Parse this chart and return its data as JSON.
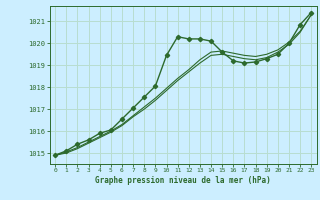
{
  "title": "Graphe pression niveau de la mer (hPa)",
  "background_color": "#cceeff",
  "grid_color": "#b8ddd0",
  "line_color": "#2d6a2d",
  "xlim": [
    -0.5,
    23.5
  ],
  "ylim": [
    1014.5,
    1021.7
  ],
  "yticks": [
    1015,
    1016,
    1017,
    1018,
    1019,
    1020,
    1021
  ],
  "xticks": [
    0,
    1,
    2,
    3,
    4,
    5,
    6,
    7,
    8,
    9,
    10,
    11,
    12,
    13,
    14,
    15,
    16,
    17,
    18,
    19,
    20,
    21,
    22,
    23
  ],
  "series1_x": [
    0,
    1,
    2,
    3,
    4,
    5,
    6,
    7,
    8,
    9,
    10,
    11,
    12,
    13,
    14,
    15,
    16,
    17,
    18,
    19,
    20,
    21,
    22,
    23
  ],
  "series1_y": [
    1014.9,
    1015.1,
    1015.4,
    1015.6,
    1015.9,
    1016.05,
    1016.55,
    1017.05,
    1017.55,
    1018.05,
    1019.45,
    1020.3,
    1020.2,
    1020.2,
    1020.1,
    1019.6,
    1019.2,
    1019.1,
    1019.15,
    1019.3,
    1019.5,
    1020.0,
    1020.85,
    1021.4
  ],
  "series2_x": [
    0,
    1,
    2,
    3,
    4,
    5,
    6,
    7,
    8,
    9,
    10,
    11,
    12,
    13,
    14,
    15,
    16,
    17,
    18,
    19,
    20,
    21,
    22,
    23
  ],
  "series2_y": [
    1014.9,
    1015.05,
    1015.25,
    1015.5,
    1015.75,
    1016.0,
    1016.3,
    1016.7,
    1017.1,
    1017.5,
    1017.95,
    1018.4,
    1018.8,
    1019.25,
    1019.6,
    1019.65,
    1019.55,
    1019.45,
    1019.4,
    1019.5,
    1019.7,
    1020.05,
    1020.55,
    1021.3
  ],
  "series3_x": [
    0,
    1,
    2,
    3,
    4,
    5,
    6,
    7,
    8,
    9,
    10,
    11,
    12,
    13,
    14,
    15,
    16,
    17,
    18,
    19,
    20,
    21,
    22,
    23
  ],
  "series3_y": [
    1014.9,
    1015.0,
    1015.2,
    1015.45,
    1015.7,
    1015.95,
    1016.25,
    1016.65,
    1017.0,
    1017.4,
    1017.85,
    1018.3,
    1018.7,
    1019.1,
    1019.45,
    1019.5,
    1019.4,
    1019.3,
    1019.25,
    1019.35,
    1019.6,
    1019.95,
    1020.5,
    1021.3
  ]
}
